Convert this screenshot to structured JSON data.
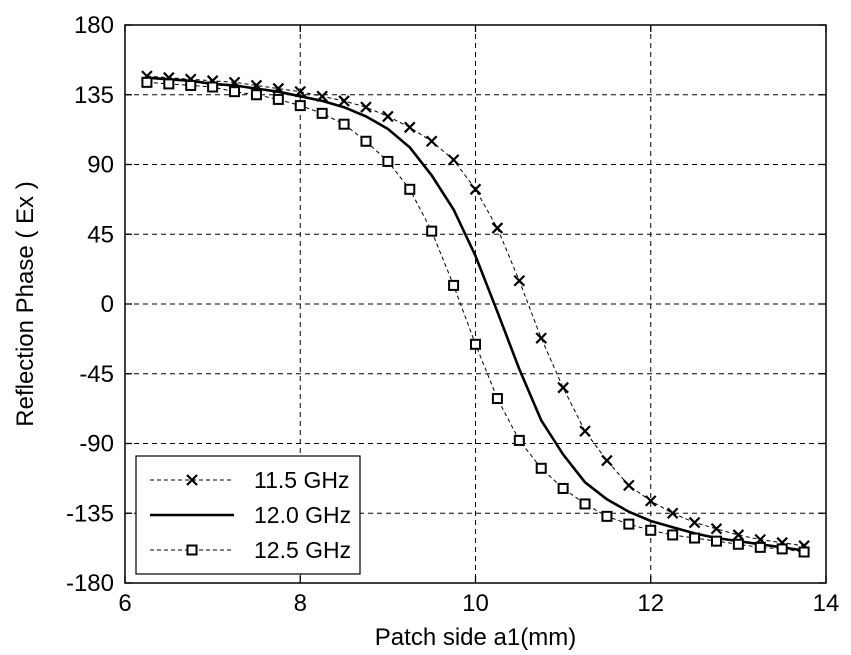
{
  "chart_data": {
    "type": "line",
    "title": "",
    "xlabel": "Patch side a1(mm)",
    "ylabel": "Reflection Phase ( Ex )",
    "xlim": [
      6,
      14
    ],
    "ylim": [
      -180,
      180
    ],
    "xticks": [
      "6",
      "8",
      "10",
      "12",
      "14"
    ],
    "yticks": [
      "180",
      "135",
      "90",
      "45",
      "0",
      "-45",
      "-90",
      "-135",
      "-180"
    ],
    "grid": true,
    "legend_position": "bottom-left",
    "series": [
      {
        "name": "11.5 GHz",
        "marker": "x",
        "line": "dashed",
        "x": [
          6.25,
          6.5,
          6.75,
          7.0,
          7.25,
          7.5,
          7.75,
          8.0,
          8.25,
          8.5,
          8.75,
          9.0,
          9.25,
          9.5,
          9.75,
          10.0,
          10.25,
          10.5,
          10.75,
          11.0,
          11.25,
          11.5,
          11.75,
          12.0,
          12.25,
          12.5,
          12.75,
          13.0,
          13.25,
          13.5,
          13.75
        ],
        "y": [
          147,
          146,
          145,
          144,
          143,
          141,
          139,
          137,
          134,
          131,
          127,
          121,
          114,
          105,
          93,
          74,
          49,
          15,
          -22,
          -54,
          -82,
          -101,
          -117,
          -127,
          -135,
          -141,
          -145,
          -149,
          -152,
          -154,
          -156
        ]
      },
      {
        "name": "12.0 GHz",
        "marker": "none",
        "line": "solid",
        "x": [
          6.25,
          6.5,
          6.75,
          7.0,
          7.25,
          7.5,
          7.75,
          8.0,
          8.25,
          8.5,
          8.75,
          9.0,
          9.25,
          9.5,
          9.75,
          10.0,
          10.25,
          10.5,
          10.75,
          11.0,
          11.25,
          11.5,
          11.75,
          12.0,
          12.25,
          12.5,
          12.75,
          13.0,
          13.25,
          13.5,
          13.75
        ],
        "y": [
          146,
          145,
          144,
          142,
          141,
          139,
          137,
          134,
          131,
          127,
          121,
          113,
          101,
          83,
          61,
          31,
          -5,
          -42,
          -75,
          -97,
          -115,
          -126,
          -134,
          -140,
          -144,
          -148,
          -151,
          -153,
          -155,
          -157,
          -159
        ]
      },
      {
        "name": "12.5 GHz",
        "marker": "square",
        "line": "dashed",
        "x": [
          6.25,
          6.5,
          6.75,
          7.0,
          7.25,
          7.5,
          7.75,
          8.0,
          8.25,
          8.5,
          8.75,
          9.0,
          9.25,
          9.5,
          9.75,
          10.0,
          10.25,
          10.5,
          10.75,
          11.0,
          11.25,
          11.5,
          11.75,
          12.0,
          12.25,
          12.5,
          12.75,
          13.0,
          13.25,
          13.5,
          13.75
        ],
        "y": [
          143,
          142,
          141,
          140,
          137,
          135,
          132,
          128,
          123,
          116,
          105,
          92,
          74,
          47,
          12,
          -26,
          -61,
          -88,
          -106,
          -119,
          -129,
          -137,
          -142,
          -146,
          -149,
          -151,
          -153,
          -155,
          -157,
          -158,
          -160
        ]
      }
    ]
  }
}
